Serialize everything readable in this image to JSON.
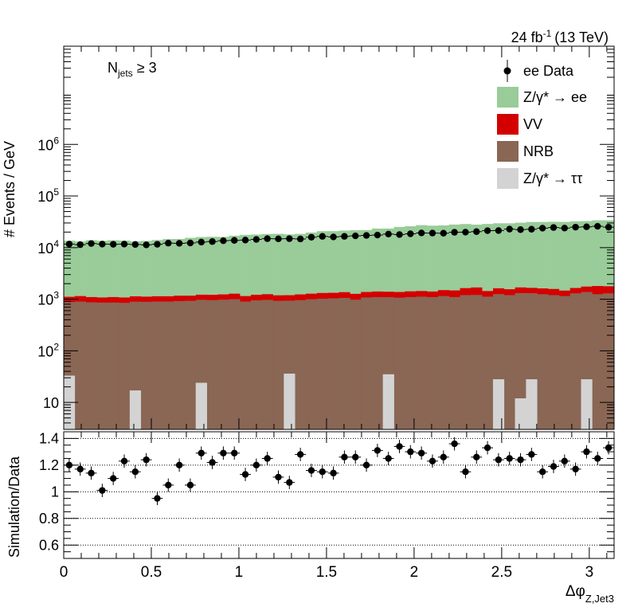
{
  "lumi_label": "24 fb",
  "lumi_exp": "-1",
  "lumi_energy": "(13 TeV)",
  "category_label": {
    "main": "N",
    "sub": "jets",
    "rest": " ≥ 3"
  },
  "chart_data": [
    {
      "type": "bar",
      "panel": "main",
      "stacked": true,
      "ylabel": "# Events / GeV",
      "yscale": "log",
      "ylim": [
        3,
        80000000
      ],
      "xlim": [
        0,
        3.1416
      ],
      "nbins": 50,
      "yticks": [
        {
          "value": 10,
          "base": "10",
          "exp": ""
        },
        {
          "value": 100,
          "base": "10",
          "exp": "2"
        },
        {
          "value": 1000,
          "base": "10",
          "exp": "3"
        },
        {
          "value": 10000,
          "base": "10",
          "exp": "4"
        },
        {
          "value": 100000,
          "base": "10",
          "exp": "5"
        },
        {
          "value": 1000000,
          "base": "10",
          "exp": "6"
        }
      ],
      "series": [
        {
          "key": "ztautau",
          "legend_html": "Z/γ* → ττ",
          "color": "#d3d3d3",
          "values": [
            33,
            0,
            0,
            0,
            0,
            0,
            17,
            0,
            0,
            0,
            0,
            0,
            24,
            0,
            0,
            0,
            0,
            0,
            0,
            0,
            36,
            0,
            0,
            0,
            0,
            0,
            0,
            0,
            0,
            35,
            0,
            0,
            0,
            0,
            0,
            0,
            0,
            0,
            0,
            28,
            0,
            12,
            28,
            0,
            0,
            0,
            0,
            28,
            0,
            0
          ]
        },
        {
          "key": "nrb",
          "legend_html": "NRB",
          "color": "#8a6655",
          "values": [
            850,
            900,
            870,
            860,
            860,
            850,
            880,
            890,
            900,
            900,
            920,
            930,
            950,
            960,
            980,
            1000,
            900,
            950,
            970,
            930,
            900,
            960,
            1000,
            1020,
            1040,
            1060,
            980,
            1080,
            1100,
            1060,
            1070,
            1100,
            1120,
            1100,
            1150,
            1100,
            1200,
            1210,
            1120,
            1230,
            1200,
            1300,
            1280,
            1250,
            1200,
            1150,
            1300,
            1350,
            1250,
            1300
          ]
        },
        {
          "key": "vv",
          "legend_html": "VV",
          "color": "#d40000",
          "values": [
            230,
            250,
            230,
            220,
            240,
            230,
            240,
            230,
            240,
            240,
            250,
            240,
            250,
            260,
            260,
            280,
            250,
            270,
            280,
            260,
            260,
            280,
            280,
            300,
            290,
            310,
            290,
            300,
            310,
            300,
            310,
            320,
            320,
            310,
            350,
            380,
            440,
            480,
            320,
            370,
            360,
            380,
            350,
            370,
            380,
            320,
            350,
            380,
            550,
            480
          ]
        },
        {
          "key": "zee",
          "legend_html": "Z/γ* → ee",
          "color": "#99cc99",
          "values": [
            12500,
            12000,
            12800,
            12500,
            12800,
            12600,
            12100,
            12400,
            12900,
            13500,
            13500,
            14300,
            14800,
            15000,
            14900,
            15700,
            16500,
            16700,
            17100,
            17300,
            16800,
            17200,
            18300,
            19500,
            19500,
            20000,
            20500,
            20500,
            22000,
            22000,
            23800,
            24500,
            25800,
            25200,
            25500,
            26500,
            27000,
            26200,
            27300,
            28000,
            28000,
            28700,
            29700,
            29800,
            30100,
            30000,
            30700,
            31000,
            32000,
            32000
          ]
        }
      ],
      "data_series": {
        "legend_html": "ee Data",
        "color": "#000000",
        "values": [
          11700,
          11400,
          12000,
          11700,
          11600,
          11700,
          11500,
          11300,
          11600,
          12200,
          12100,
          12300,
          12800,
          13100,
          13600,
          13800,
          14000,
          14400,
          14900,
          14800,
          14900,
          14700,
          15900,
          16500,
          16100,
          16500,
          16900,
          17200,
          17500,
          18300,
          17900,
          18500,
          19200,
          19100,
          19000,
          19800,
          19900,
          20400,
          21300,
          21400,
          22800,
          22300,
          22700,
          23800,
          24500,
          23900,
          24900,
          25300,
          25900,
          24900
        ]
      }
    },
    {
      "type": "scatter",
      "panel": "ratio",
      "ylabel": "Simulation/Data",
      "xlabel_main": "Δφ",
      "xlabel_sub": "Z,Jet3",
      "ylim": [
        0.5,
        1.45
      ],
      "xlim": [
        0,
        3.1416
      ],
      "yticks": [
        0.6,
        0.8,
        1,
        1.2,
        1.4
      ],
      "ytick_labels": [
        "0.6",
        "0.8",
        "1",
        "1.2",
        "1.4"
      ],
      "xticks": [
        0,
        0.5,
        1,
        1.5,
        2,
        2.5,
        3
      ],
      "xtick_labels": [
        "0",
        "0.5",
        "1",
        "1.5",
        "2",
        "2.5",
        "3"
      ],
      "gridlines": [
        0.6,
        0.8,
        1.0,
        1.2,
        1.4
      ],
      "values": [
        1.2,
        1.17,
        1.14,
        1.01,
        1.1,
        1.23,
        1.15,
        1.24,
        0.95,
        1.05,
        1.2,
        1.05,
        1.29,
        1.22,
        1.29,
        1.29,
        1.13,
        1.2,
        1.25,
        1.11,
        1.07,
        1.28,
        1.16,
        1.15,
        1.14,
        1.26,
        1.26,
        1.2,
        1.31,
        1.25,
        1.34,
        1.3,
        1.29,
        1.23,
        1.26,
        1.36,
        1.15,
        1.26,
        1.33,
        1.24,
        1.25,
        1.24,
        1.28,
        1.15,
        1.19,
        1.23,
        1.17,
        1.3,
        1.25,
        1.33
      ],
      "errors": [
        0.05,
        0.05,
        0.05,
        0.05,
        0.05,
        0.05,
        0.05,
        0.05,
        0.05,
        0.05,
        0.05,
        0.05,
        0.05,
        0.05,
        0.05,
        0.05,
        0.05,
        0.05,
        0.05,
        0.05,
        0.05,
        0.05,
        0.05,
        0.05,
        0.05,
        0.05,
        0.05,
        0.05,
        0.05,
        0.05,
        0.05,
        0.05,
        0.05,
        0.05,
        0.05,
        0.05,
        0.05,
        0.05,
        0.05,
        0.05,
        0.05,
        0.05,
        0.05,
        0.05,
        0.05,
        0.05,
        0.05,
        0.05,
        0.05,
        0.05
      ]
    }
  ]
}
